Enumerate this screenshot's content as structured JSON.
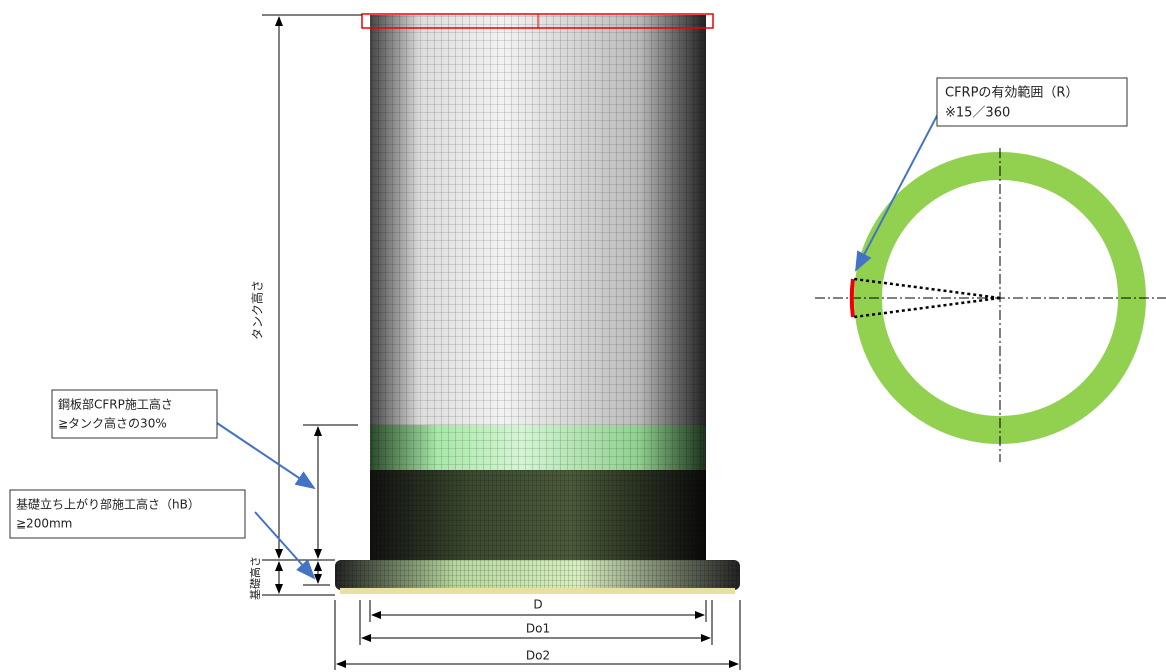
{
  "tank_diagram": {
    "height_label": "タンク高さ",
    "foundation_height_label": "基礎高さ",
    "dimensions": [
      "D",
      "Do1",
      "Do2"
    ]
  },
  "callouts": [
    {
      "lines": [
        "鋼板部CFRP施工高さ",
        "≧タンク高さの30%"
      ]
    },
    {
      "lines": [
        "基礎立ち上がり部施工高さ（hB）",
        "≧200mm"
      ]
    },
    {
      "lines": [
        "CFRPの有効範囲（R）",
        "※15／360"
      ]
    }
  ]
}
